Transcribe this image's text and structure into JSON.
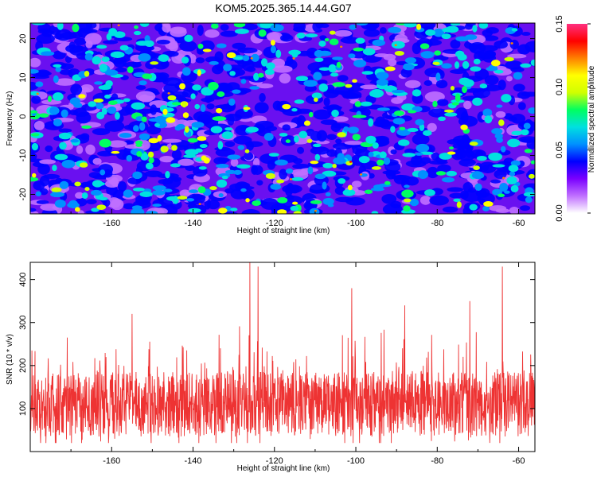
{
  "title": "KOM5.2025.365.14.44.G07",
  "chart_data": [
    {
      "type": "heatmap",
      "name": "spectrogram",
      "xlabel": "Height of straight line (km)",
      "ylabel": "Frequency (Hz)",
      "xlim": [
        -180,
        -56
      ],
      "ylim": [
        -25,
        24
      ],
      "xticks": [
        -160,
        -140,
        -120,
        -100,
        -80,
        -60
      ],
      "yticks": [
        -20,
        -10,
        0,
        10,
        20
      ],
      "colorbar": {
        "label": "Normalized spectral amplitude",
        "range": [
          0.0,
          0.15
        ],
        "ticks": [
          "0.00",
          "0.05",
          "0.10",
          "0.15"
        ],
        "colors": [
          "#ffffff",
          "#c070ff",
          "#7a00ff",
          "#0000ff",
          "#0090ff",
          "#00e0e0",
          "#00ff60",
          "#d0ff00",
          "#ffff00",
          "#ff8000",
          "#ff0000",
          "#ff3080"
        ]
      },
      "values": "dense noise-like spectral amplitude field, typical 0.02-0.08, sparse peaks up to ~0.12"
    },
    {
      "type": "line",
      "name": "snr",
      "xlabel": "Height of straight line (km)",
      "ylabel": "SNR (10 * v/v)",
      "xlim": [
        -180,
        -56
      ],
      "ylim": [
        0,
        440
      ],
      "xticks": [
        -160,
        -140,
        -120,
        -100,
        -80,
        -60
      ],
      "yticks": [
        100,
        200,
        300,
        400
      ],
      "color": "#ee3333",
      "baseline": 110,
      "typical_range": [
        20,
        260
      ],
      "peaks": [
        {
          "x": -126,
          "y": 440
        },
        {
          "x": -124,
          "y": 430
        },
        {
          "x": -101,
          "y": 380
        },
        {
          "x": -64,
          "y": 430
        },
        {
          "x": -155,
          "y": 320
        },
        {
          "x": -88,
          "y": 340
        },
        {
          "x": -72,
          "y": 350
        }
      ]
    }
  ]
}
